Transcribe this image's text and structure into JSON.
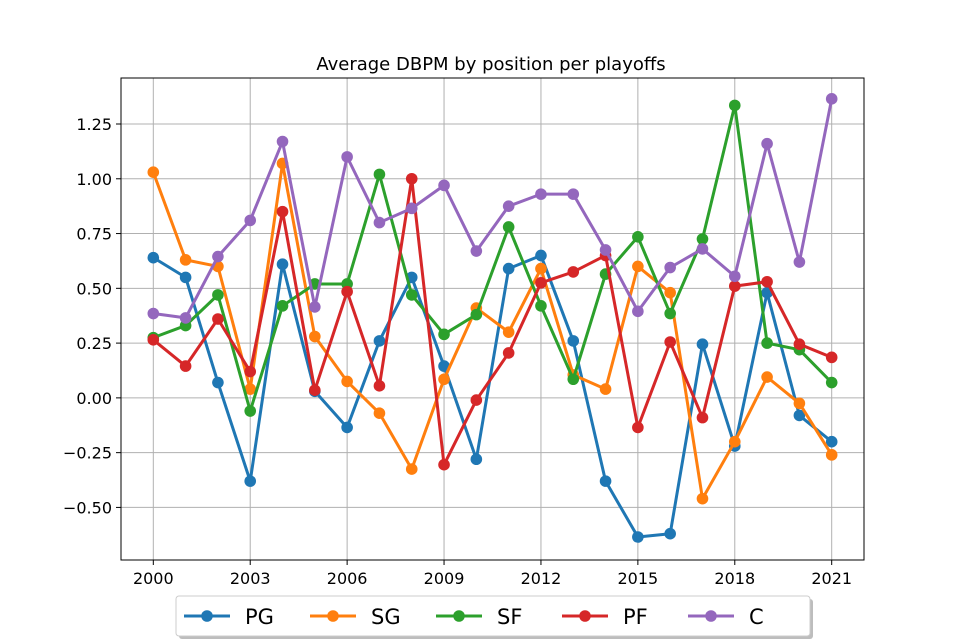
{
  "chart_data": {
    "type": "line",
    "title": "Average DBPM by position per playoffs",
    "xlabel": "",
    "ylabel": "",
    "x": [
      2000,
      2001,
      2002,
      2003,
      2004,
      2005,
      2006,
      2007,
      2008,
      2009,
      2010,
      2011,
      2012,
      2013,
      2014,
      2015,
      2016,
      2017,
      2018,
      2019,
      2020,
      2021
    ],
    "xlim": [
      1999,
      2022
    ],
    "ylim": [
      -0.74,
      1.46
    ],
    "x_ticks": [
      2000,
      2003,
      2006,
      2009,
      2012,
      2015,
      2018,
      2021
    ],
    "y_ticks": [
      -0.5,
      -0.25,
      0.0,
      0.25,
      0.5,
      0.75,
      1.0,
      1.25
    ],
    "x_tick_labels": [
      "2000",
      "2003",
      "2006",
      "2009",
      "2012",
      "2015",
      "2018",
      "2021"
    ],
    "y_tick_labels": [
      "−0.50",
      "−0.25",
      "0.00",
      "0.25",
      "0.50",
      "0.75",
      "1.00",
      "1.25"
    ],
    "grid": true,
    "legend_position": "bottom-center",
    "series": [
      {
        "name": "PG",
        "color": "#1f77b4",
        "values": [
          0.64,
          0.55,
          0.07,
          -0.38,
          0.61,
          0.03,
          -0.135,
          0.26,
          0.55,
          0.145,
          -0.28,
          0.59,
          0.65,
          0.26,
          -0.38,
          -0.635,
          -0.62,
          0.245,
          -0.22,
          0.48,
          -0.08,
          -0.2
        ]
      },
      {
        "name": "SG",
        "color": "#ff7f0e",
        "values": [
          1.03,
          0.63,
          0.6,
          0.04,
          1.07,
          0.28,
          0.075,
          -0.07,
          -0.325,
          0.085,
          0.41,
          0.3,
          0.59,
          0.105,
          0.04,
          0.6,
          0.48,
          -0.46,
          -0.2,
          0.095,
          -0.025,
          -0.26
        ]
      },
      {
        "name": "SF",
        "color": "#2ca02c",
        "values": [
          0.275,
          0.33,
          0.47,
          -0.06,
          0.42,
          0.52,
          0.52,
          1.02,
          0.47,
          0.29,
          0.38,
          0.78,
          0.42,
          0.085,
          0.565,
          0.735,
          0.385,
          0.725,
          1.335,
          0.25,
          0.22,
          0.07
        ]
      },
      {
        "name": "PF",
        "color": "#d62728",
        "values": [
          0.265,
          0.145,
          0.36,
          0.12,
          0.85,
          0.035,
          0.485,
          0.055,
          1.0,
          -0.305,
          -0.01,
          0.205,
          0.525,
          0.575,
          0.65,
          -0.135,
          0.255,
          -0.09,
          0.51,
          0.53,
          0.245,
          0.185
        ]
      },
      {
        "name": "C",
        "color": "#9467bd",
        "values": [
          0.385,
          0.365,
          0.645,
          0.81,
          1.17,
          0.415,
          1.1,
          0.8,
          0.865,
          0.97,
          0.67,
          0.875,
          0.93,
          0.93,
          0.675,
          0.395,
          0.595,
          0.68,
          0.555,
          1.16,
          0.62,
          1.365
        ]
      }
    ]
  }
}
